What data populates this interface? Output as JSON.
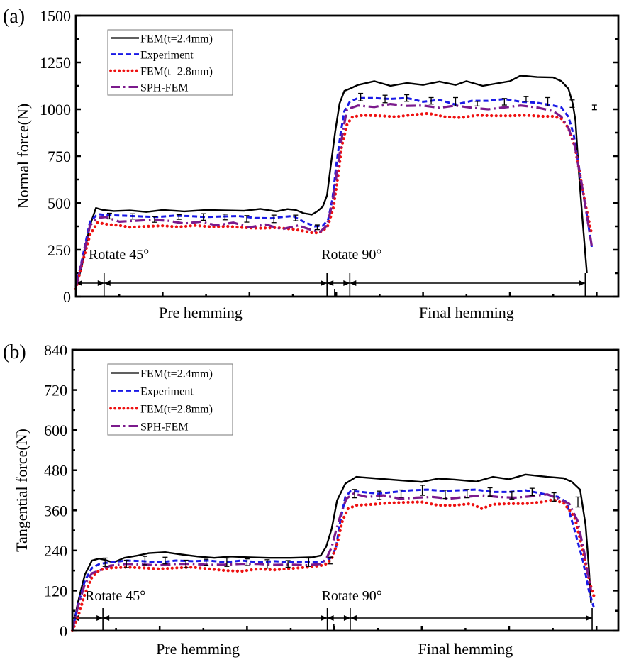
{
  "chart_data": [
    {
      "type": "line",
      "panel_label": "(a)",
      "title": "",
      "xlabel": "",
      "ylabel": "Normal force(N)",
      "xlim": [
        0,
        100
      ],
      "ylim": [
        0,
        1500
      ],
      "yticks": [
        0,
        250,
        500,
        750,
        1000,
        1250,
        1500
      ],
      "xticks_major": [
        16,
        32,
        48,
        64,
        80,
        96
      ],
      "grid": false,
      "legend_position": "top-left",
      "phase_labels": [
        {
          "text": "Pre hemming",
          "x_center": 23
        },
        {
          "text": "Final hemming",
          "x_center": 72
        }
      ],
      "annotations": [
        {
          "text": "Rotate 45°",
          "x": 2
        },
        {
          "text": "Rotate 90°",
          "x": 45
        }
      ],
      "phase_markers": [
        0,
        5.2,
        46.3,
        47.7,
        50.5,
        93.9
      ],
      "series": [
        {
          "name": "FEM(t=2.4mm)",
          "color": "#000000",
          "style": "solid",
          "x": [
            0,
            1,
            2.6,
            3.7,
            5,
            7,
            10,
            13,
            16,
            20,
            24,
            28,
            31,
            34,
            37,
            39,
            40.5,
            42,
            43.5,
            44.5,
            45.5,
            46.3,
            47,
            47.8,
            48.6,
            49.5,
            50.5,
            52,
            55,
            58,
            61,
            64,
            67,
            70,
            72,
            75,
            78,
            80,
            82,
            85,
            88,
            89.5,
            90.8,
            91.6,
            92.1,
            92.6,
            93.3,
            94.2
          ],
          "y": [
            50,
            150,
            380,
            473,
            462,
            457,
            460,
            452,
            462,
            455,
            462,
            460,
            458,
            468,
            455,
            467,
            463,
            445,
            438,
            455,
            480,
            540,
            700,
            880,
            1030,
            1098,
            1110,
            1130,
            1150,
            1125,
            1140,
            1130,
            1148,
            1130,
            1150,
            1125,
            1140,
            1150,
            1180,
            1172,
            1170,
            1150,
            1110,
            1030,
            939,
            712,
            447,
            125
          ]
        },
        {
          "name": "Experiment",
          "color": "#1a1ae6",
          "style": "dashed",
          "x": [
            0,
            1,
            2.6,
            4,
            6,
            9,
            12,
            15,
            18,
            21,
            24,
            27,
            30,
            33,
            36,
            38,
            40,
            42,
            44,
            45.5,
            46.5,
            47.3,
            48,
            48.8,
            49.5,
            50.5,
            52,
            55,
            58,
            61,
            64,
            67,
            70,
            73,
            76,
            79,
            82,
            85,
            88,
            89.5,
            90.8,
            91.8,
            92.8,
            94,
            95.1
          ],
          "y": [
            55,
            180,
            400,
            440,
            435,
            432,
            428,
            425,
            432,
            430,
            425,
            428,
            430,
            420,
            418,
            425,
            430,
            400,
            375,
            378,
            410,
            520,
            700,
            870,
            990,
            1040,
            1060,
            1060,
            1055,
            1060,
            1040,
            1050,
            1025,
            1045,
            1045,
            1055,
            1040,
            1035,
            1020,
            1010,
            960,
            860,
            680,
            470,
            265
          ]
        },
        {
          "name": "FEM(t=2.8mm)",
          "color": "#ee1111",
          "style": "dotted",
          "x": [
            0,
            1,
            2.6,
            4,
            6,
            8,
            10,
            13,
            16,
            19,
            22,
            25,
            28,
            31,
            34,
            37,
            40,
            42,
            44,
            45.5,
            46.5,
            47.5,
            48.3,
            49,
            50,
            51,
            53,
            56,
            59,
            62,
            65,
            68,
            71,
            74,
            77,
            80,
            83,
            86,
            88,
            89.5,
            90.8,
            92,
            93,
            94,
            95.1
          ],
          "y": [
            40,
            160,
            330,
            395,
            385,
            380,
            370,
            375,
            378,
            372,
            380,
            372,
            375,
            368,
            365,
            368,
            360,
            350,
            338,
            350,
            380,
            480,
            640,
            800,
            920,
            960,
            968,
            965,
            960,
            970,
            978,
            960,
            955,
            968,
            965,
            965,
            968,
            962,
            962,
            950,
            900,
            800,
            640,
            480,
            333
          ]
        },
        {
          "name": "SPH-FEM",
          "color": "#7b1a8c",
          "style": "dashdot",
          "x": [
            0,
            1,
            2.6,
            4,
            5.5,
            8,
            11,
            14,
            17,
            20,
            23,
            26,
            29,
            32,
            35,
            38,
            41,
            43.5,
            45,
            46.3,
            47.3,
            48.3,
            49.2,
            50,
            52,
            55,
            58,
            61,
            64,
            67,
            70,
            73,
            76,
            79,
            82,
            85,
            88,
            89.5,
            90.8,
            92,
            93,
            94,
            95.1
          ],
          "y": [
            50,
            170,
            380,
            420,
            425,
            400,
            405,
            410,
            405,
            390,
            400,
            380,
            395,
            370,
            385,
            360,
            380,
            355,
            345,
            380,
            500,
            700,
            880,
            1000,
            1020,
            1012,
            1028,
            1018,
            1020,
            1008,
            1020,
            1008,
            1000,
            1010,
            1020,
            1010,
            990,
            960,
            900,
            800,
            640,
            470,
            270
          ]
        }
      ],
      "error_bars": {
        "series": "Experiment",
        "points": [
          {
            "x": 6.2,
            "y": 430,
            "err": 30
          },
          {
            "x": 10.5,
            "y": 428,
            "err": 28
          },
          {
            "x": 14.5,
            "y": 412,
            "err": 30
          },
          {
            "x": 19,
            "y": 425,
            "err": 25
          },
          {
            "x": 23.5,
            "y": 425,
            "err": 35
          },
          {
            "x": 27.5,
            "y": 425,
            "err": 30
          },
          {
            "x": 31.5,
            "y": 415,
            "err": 35
          },
          {
            "x": 36.5,
            "y": 415,
            "err": 40
          },
          {
            "x": 40.5,
            "y": 420,
            "err": 30
          },
          {
            "x": 44.5,
            "y": 370,
            "err": 25
          },
          {
            "x": 52.5,
            "y": 1065,
            "err": 40
          },
          {
            "x": 57,
            "y": 1055,
            "err": 40
          },
          {
            "x": 61,
            "y": 1060,
            "err": 35
          },
          {
            "x": 65.5,
            "y": 1045,
            "err": 35
          },
          {
            "x": 70,
            "y": 1040,
            "err": 45
          },
          {
            "x": 74,
            "y": 1030,
            "err": 25
          },
          {
            "x": 79,
            "y": 1040,
            "err": 35
          },
          {
            "x": 83,
            "y": 1055,
            "err": 25
          },
          {
            "x": 87,
            "y": 1040,
            "err": 45
          },
          {
            "x": 91.5,
            "y": 1030,
            "err": 40
          },
          {
            "x": 95.6,
            "y": 1010,
            "err": 25
          }
        ]
      }
    },
    {
      "type": "line",
      "panel_label": "(b)",
      "title": "",
      "xlabel": "",
      "ylabel": "Tangential force(N)",
      "xlim": [
        0,
        100
      ],
      "ylim": [
        0,
        840
      ],
      "yticks": [
        0,
        120,
        240,
        360,
        480,
        600,
        720,
        840
      ],
      "xticks_major": [
        16,
        32,
        48,
        64,
        80,
        96
      ],
      "grid": false,
      "legend_position": "top-left",
      "phase_labels": [
        {
          "text": "Pre hemming",
          "x_center": 23
        },
        {
          "text": "Final hemming",
          "x_center": 72
        }
      ],
      "annotations": [
        {
          "text": "Rotate 45°",
          "x": 2
        },
        {
          "text": "Rotate 90°",
          "x": 45
        }
      ],
      "phase_markers": [
        0,
        5.6,
        46.7,
        47.9,
        50.9,
        95.2
      ],
      "series": [
        {
          "name": "FEM(t=2.4mm)",
          "color": "#000000",
          "style": "solid",
          "x": [
            0,
            1,
            2.3,
            3.6,
            4.9,
            6,
            7.5,
            9.5,
            12,
            14,
            17,
            20,
            23,
            26,
            29,
            32,
            36,
            40,
            44,
            45.5,
            46.5,
            47.5,
            48.5,
            50,
            52,
            56,
            60,
            64,
            67,
            70,
            74,
            77,
            80,
            83,
            87,
            90,
            91.5,
            93,
            94,
            94.6,
            95
          ],
          "y": [
            0,
            83,
            168,
            210,
            216,
            212,
            204,
            218,
            225,
            232,
            235,
            228,
            222,
            218,
            222,
            220,
            218,
            218,
            220,
            225,
            252,
            305,
            390,
            440,
            460,
            455,
            450,
            445,
            455,
            452,
            446,
            460,
            453,
            467,
            460,
            456,
            445,
            422,
            316,
            189,
            83
          ]
        },
        {
          "name": "Experiment",
          "color": "#1a1ae6",
          "style": "dashed",
          "x": [
            0,
            1,
            2.3,
            3.6,
            5,
            7,
            10,
            13,
            16,
            19,
            22,
            25,
            28,
            31,
            34,
            37,
            40,
            43,
            45.5,
            46.5,
            47.5,
            48.3,
            49,
            50,
            51,
            53,
            56,
            59,
            62,
            65,
            68,
            71,
            74,
            77,
            80,
            83,
            86,
            89,
            90.5,
            92,
            93.5,
            94.6,
            95.5
          ],
          "y": [
            0,
            75,
            150,
            188,
            200,
            205,
            210,
            208,
            205,
            210,
            208,
            210,
            205,
            210,
            205,
            208,
            205,
            205,
            205,
            210,
            220,
            250,
            320,
            400,
            418,
            415,
            410,
            415,
            420,
            422,
            418,
            420,
            422,
            415,
            415,
            420,
            410,
            400,
            385,
            300,
            210,
            120,
            70
          ]
        },
        {
          "name": "FEM(t=2.8mm)",
          "color": "#ee1111",
          "style": "dotted",
          "x": [
            0,
            1,
            2.3,
            3.6,
            5,
            7,
            10,
            13,
            16,
            19,
            22,
            25,
            28,
            31,
            34,
            37,
            40,
            43,
            45.5,
            46.5,
            47.5,
            48.5,
            49.5,
            50.5,
            52,
            55,
            58,
            61,
            64,
            67,
            70,
            73,
            75,
            77,
            80,
            83,
            86,
            88,
            90,
            92,
            93.5,
            94.8,
            95.6
          ],
          "y": [
            0,
            40,
            110,
            160,
            182,
            188,
            190,
            188,
            185,
            188,
            190,
            185,
            180,
            178,
            185,
            182,
            186,
            190,
            195,
            200,
            215,
            260,
            330,
            365,
            375,
            378,
            382,
            384,
            385,
            375,
            375,
            380,
            365,
            378,
            380,
            380,
            385,
            392,
            382,
            340,
            240,
            140,
            100
          ]
        },
        {
          "name": "SPH-FEM",
          "color": "#7b1a8c",
          "style": "dashdot",
          "x": [
            0,
            1,
            2.3,
            3.6,
            5,
            7,
            10,
            13,
            16,
            19,
            22,
            25,
            28,
            31,
            34,
            37,
            40,
            43,
            45.5,
            46.5,
            47.5,
            48.3,
            49.2,
            50.2,
            51.5,
            54,
            57,
            60,
            63,
            66,
            69,
            72,
            75,
            78,
            81,
            84,
            87,
            89,
            91,
            92.5,
            93.8,
            95
          ],
          "y": [
            0,
            70,
            140,
            172,
            180,
            195,
            200,
            198,
            196,
            200,
            200,
            197,
            198,
            200,
            200,
            197,
            198,
            196,
            200,
            215,
            250,
            300,
            350,
            395,
            410,
            400,
            405,
            395,
            398,
            400,
            395,
            400,
            405,
            400,
            398,
            402,
            408,
            395,
            380,
            330,
            230,
            120
          ]
        }
      ],
      "error_bars": {
        "series": "Experiment",
        "points": [
          {
            "x": 6,
            "y": 205,
            "err": 25
          },
          {
            "x": 9.9,
            "y": 200,
            "err": 22
          },
          {
            "x": 13.3,
            "y": 210,
            "err": 25
          },
          {
            "x": 17,
            "y": 210,
            "err": 20
          },
          {
            "x": 20.8,
            "y": 200,
            "err": 22
          },
          {
            "x": 24.5,
            "y": 205,
            "err": 18
          },
          {
            "x": 28.3,
            "y": 205,
            "err": 25
          },
          {
            "x": 32,
            "y": 205,
            "err": 20
          },
          {
            "x": 35.7,
            "y": 200,
            "err": 25
          },
          {
            "x": 39.5,
            "y": 200,
            "err": 20
          },
          {
            "x": 43.3,
            "y": 205,
            "err": 25
          },
          {
            "x": 47.2,
            "y": 210,
            "err": 20
          },
          {
            "x": 51.7,
            "y": 410,
            "err": 25
          },
          {
            "x": 56.2,
            "y": 405,
            "err": 25
          },
          {
            "x": 60.2,
            "y": 410,
            "err": 22
          },
          {
            "x": 64.1,
            "y": 420,
            "err": 30
          },
          {
            "x": 68.3,
            "y": 408,
            "err": 25
          },
          {
            "x": 72.3,
            "y": 410,
            "err": 25
          },
          {
            "x": 76.5,
            "y": 415,
            "err": 25
          },
          {
            "x": 80.5,
            "y": 405,
            "err": 22
          },
          {
            "x": 84.2,
            "y": 415,
            "err": 22
          },
          {
            "x": 88.2,
            "y": 400,
            "err": 25
          },
          {
            "x": 92.6,
            "y": 385,
            "err": 30
          }
        ]
      }
    }
  ]
}
